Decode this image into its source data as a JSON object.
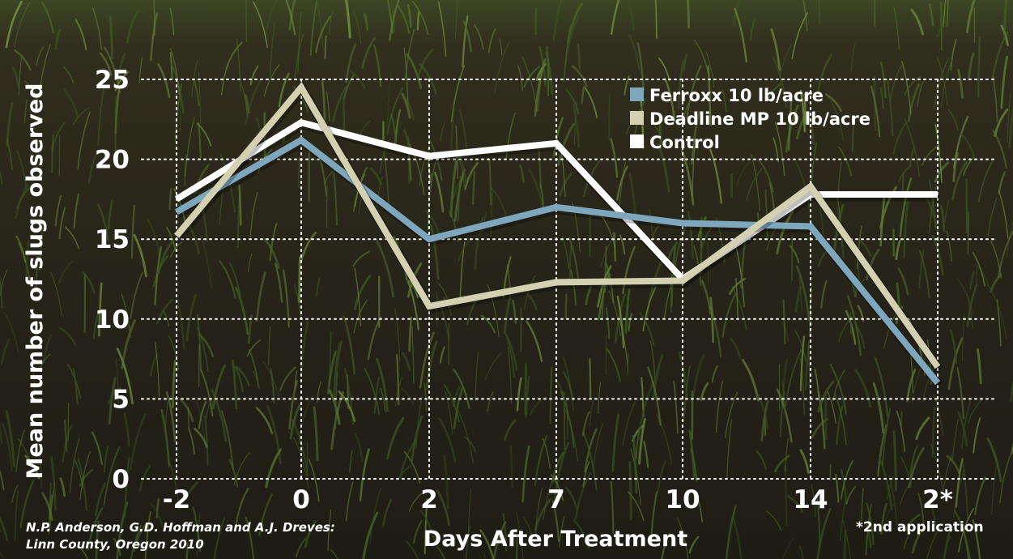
{
  "chart_data": {
    "type": "line",
    "title": "",
    "xlabel": "Days After Treatment",
    "ylabel": "Mean number of slugs observed",
    "categories": [
      "-2",
      "0",
      "2",
      "7",
      "10",
      "14",
      "2*"
    ],
    "ylim": [
      0,
      25
    ],
    "yticks": [
      0,
      5,
      10,
      15,
      20,
      25
    ],
    "grid": true,
    "legend_position": "top-right",
    "series": [
      {
        "name": "Control",
        "values": [
          17.5,
          22.3,
          20.2,
          21.0,
          12.5,
          17.8,
          17.8
        ],
        "color": "#ffffff"
      },
      {
        "name": "Ferroxx 10 lb/acre",
        "values": [
          16.7,
          21.2,
          15.0,
          17.0,
          16.0,
          15.8,
          6.0
        ],
        "color": "#7ea7be"
      },
      {
        "name": "Deadline MP 10 lb/acre",
        "values": [
          15.2,
          24.5,
          10.8,
          12.3,
          12.4,
          18.3,
          7.0
        ],
        "color": "#d3d1b1"
      }
    ],
    "legend_order": [
      "Ferroxx 10 lb/acre",
      "Deadline MP 10 lb/acre",
      "Control"
    ]
  },
  "credit": {
    "line1": "N.P. Anderson, G.D. Hoffman and A.J. Dreves:",
    "line2": "Linn County, Oregon 2010"
  },
  "footnote": "*2nd application"
}
